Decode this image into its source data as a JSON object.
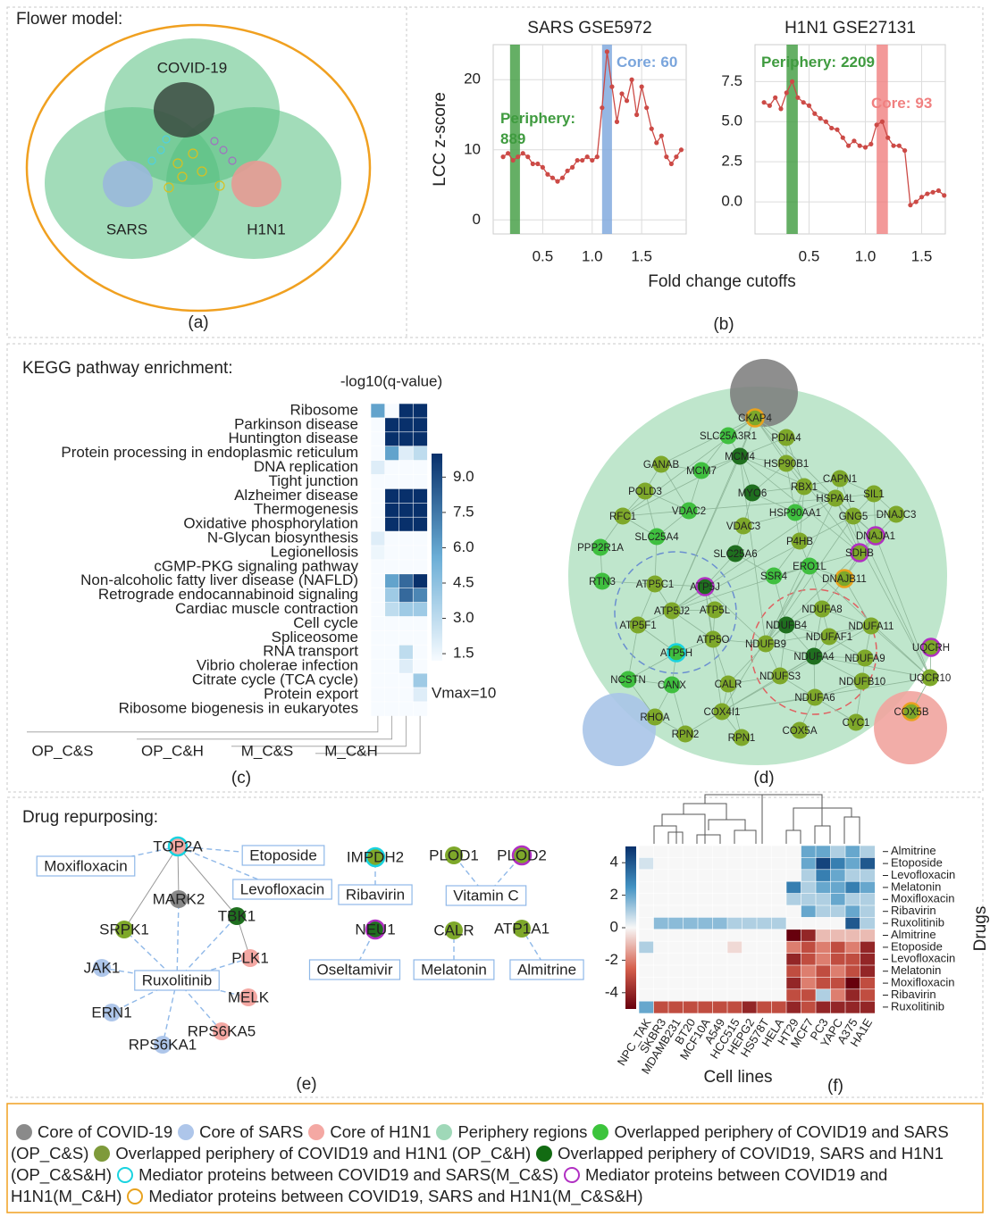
{
  "panel_a": {
    "title": "Flower model:",
    "covid": "COVID-19",
    "sars": "SARS",
    "h1n1": "H1N1",
    "label": "(a)"
  },
  "panel_b": {
    "xlabel": "Fold change cutoffs",
    "ylabel": "LCC z-score",
    "label": "(b)"
  },
  "panel_c": {
    "title": "KEGG pathway enrichment:",
    "label": "(c)"
  },
  "panel_e": {
    "title": "Drug repurposing:",
    "label": "(e)"
  },
  "panel_f": {
    "xlabel": "Cell lines",
    "ylabel": "Drugs",
    "label": "(f)"
  },
  "chart_data": [
    {
      "type": "line",
      "title": "SARS GSE5972",
      "x": [
        0.1,
        0.15,
        0.2,
        0.25,
        0.3,
        0.35,
        0.4,
        0.45,
        0.5,
        0.55,
        0.6,
        0.65,
        0.7,
        0.75,
        0.8,
        0.85,
        0.9,
        0.95,
        1.0,
        1.05,
        1.1,
        1.15,
        1.2,
        1.25,
        1.3,
        1.35,
        1.4,
        1.45,
        1.5,
        1.55,
        1.6,
        1.65,
        1.7,
        1.75,
        1.8,
        1.85,
        1.9
      ],
      "series": [
        {
          "color": "#cc4a46",
          "values": [
            9,
            9.5,
            8.5,
            9,
            9.5,
            9,
            8,
            8,
            7.5,
            6.5,
            6,
            5.5,
            6,
            7,
            7.5,
            8.5,
            8.5,
            9,
            8.5,
            9,
            16,
            24,
            19,
            14,
            18,
            17,
            20,
            15,
            19,
            16,
            13,
            11,
            12,
            9,
            8,
            9,
            10
          ]
        }
      ],
      "xlim": [
        0,
        1.95
      ],
      "xticks": [
        0.5,
        {
          "value": 1,
          "label": "1.0"
        },
        1.5
      ],
      "ylim": [
        -2,
        25
      ],
      "yticks": [
        0,
        10,
        20
      ],
      "grid": true,
      "highlights": [
        {
          "label": "Periphery:",
          "count": 889,
          "x": [
            0.17,
            0.27
          ],
          "color": "#3f9b3f"
        },
        {
          "label": "Core:",
          "count": 60,
          "x": [
            1.1,
            1.2
          ],
          "color": "#7aa5dc"
        }
      ]
    },
    {
      "type": "line",
      "title": "H1N1 GSE27131",
      "x": [
        0.1,
        0.15,
        0.2,
        0.25,
        0.3,
        0.35,
        0.4,
        0.45,
        0.5,
        0.55,
        0.6,
        0.65,
        0.7,
        0.75,
        0.8,
        0.85,
        0.9,
        0.95,
        1.0,
        1.05,
        1.1,
        1.15,
        1.2,
        1.25,
        1.3,
        1.35,
        1.4,
        1.45,
        1.5,
        1.55,
        1.6,
        1.65,
        1.7
      ],
      "series": [
        {
          "color": "#cc4a46",
          "values": [
            6.2,
            6,
            6.5,
            5.8,
            6.8,
            7.5,
            6.5,
            6.2,
            6,
            5.5,
            5.2,
            5,
            4.6,
            4.5,
            4,
            3.5,
            3.8,
            3.5,
            3.4,
            3.6,
            4.8,
            5,
            4,
            3.5,
            3.5,
            3.2,
            -0.2,
            0,
            0.3,
            0.5,
            0.6,
            0.7,
            0.4
          ]
        }
      ],
      "xlim": [
        0.02,
        1.71
      ],
      "xticks": [
        0.5,
        {
          "value": 1,
          "label": "1.0"
        },
        1.5
      ],
      "ylim": [
        -2,
        9.8
      ],
      "yticks": [
        {
          "value": 0,
          "label": "0.0"
        },
        2.5,
        {
          "value": 5,
          "label": "5.0"
        },
        7.5
      ],
      "grid": true,
      "highlights": [
        {
          "label": "Periphery:",
          "count": 2209,
          "x": [
            0.3,
            0.4
          ],
          "color": "#3f9b3f"
        },
        {
          "label": "Core:",
          "count": 93,
          "x": [
            1.1,
            1.2
          ],
          "color": "#f08080"
        }
      ]
    },
    {
      "type": "heatmap",
      "colorbar_title": "-log10(q-value)",
      "note": "Vmax=10",
      "rows": [
        "Ribosome",
        "Parkinson disease",
        "Huntington disease",
        "Protein processing in endoplasmic reticulum",
        "DNA replication",
        "Tight junction",
        "Alzheimer disease",
        "Thermogenesis",
        "Oxidative phosphorylation",
        "N-Glycan biosynthesis",
        "Legionellosis",
        "cGMP-PKG signaling pathway",
        "Non-alcoholic fatty liver disease (NAFLD)",
        "Retrograde endocannabinoid signaling",
        "Cardiac muscle contraction",
        "Cell cycle",
        "Spliceosome",
        "RNA transport",
        "Vibrio cholerae infection",
        "Citrate cycle (TCA cycle)",
        "Protein export",
        "Ribosome biogenesis in eukaryotes"
      ],
      "columns": [
        "OP_C&S",
        "OP_C&H",
        "M_C&S",
        "M_C&H"
      ],
      "values": [
        [
          6,
          1,
          10,
          10
        ],
        [
          1,
          10,
          10,
          10
        ],
        [
          1,
          10,
          10,
          10
        ],
        [
          1,
          6,
          2,
          3
        ],
        [
          2,
          1,
          1,
          1
        ],
        [
          1,
          0.5,
          0.5,
          0.5
        ],
        [
          1,
          10,
          10,
          10
        ],
        [
          1,
          10,
          10,
          10
        ],
        [
          1,
          10,
          10,
          10
        ],
        [
          2,
          0.5,
          0.5,
          0.5
        ],
        [
          1.5,
          0.5,
          0.5,
          0.5
        ],
        [
          1,
          0.5,
          0.5,
          0.5
        ],
        [
          1,
          6,
          8,
          10
        ],
        [
          1,
          4,
          8,
          7
        ],
        [
          1,
          3,
          4,
          4
        ],
        [
          1,
          0.5,
          0.5,
          0.5
        ],
        [
          1,
          0.5,
          0.5,
          0.5
        ],
        [
          1,
          0.5,
          3,
          0.5
        ],
        [
          1,
          0.5,
          2,
          0.5
        ],
        [
          1,
          0.5,
          0.5,
          4
        ],
        [
          1,
          0.5,
          0.5,
          2
        ],
        [
          1,
          0.5,
          0.5,
          0.5
        ]
      ],
      "clim": [
        1.2,
        10
      ],
      "colors": [
        "#f7fbff",
        "#6baed6",
        "#08306b"
      ],
      "cticks": [
        1.5,
        {
          "value": 3,
          "label": "3.0"
        },
        4.5,
        {
          "value": 6,
          "label": "6.0"
        },
        7.5,
        {
          "value": 9,
          "label": "9.0"
        }
      ]
    },
    {
      "type": "heatmap",
      "rows": [
        "Almitrine",
        "Etoposide",
        "Levofloxacin",
        "Melatonin",
        "Moxifloxacin",
        "Ribavirin",
        "Ruxolitinib",
        "Almitrine",
        "Etoposide",
        "Levofloxacin",
        "Melatonin",
        "Moxifloxacin",
        "Ribavirin",
        "Ruxolitinib"
      ],
      "columns": [
        "NPC_TAK",
        "SKBR3",
        "MDAMB231",
        "BT20",
        "MCF10A",
        "A549",
        "HCC515",
        "HEPG2",
        "HS578T",
        "HELA",
        "HT29",
        "MCF7",
        "PC3",
        "YAPC",
        "A375",
        "HA1E"
      ],
      "values": [
        [
          0,
          0,
          0,
          0,
          0,
          0,
          0,
          0,
          0,
          0,
          0,
          2,
          2,
          1,
          2,
          1
        ],
        [
          0.5,
          0,
          0,
          0,
          0,
          0,
          0,
          0,
          0,
          0,
          0,
          2,
          4.5,
          3,
          2,
          4
        ],
        [
          0,
          0,
          0,
          0,
          0,
          0,
          0,
          0,
          0,
          0,
          0,
          1,
          3,
          2,
          1,
          1
        ],
        [
          0,
          0,
          0,
          0,
          0,
          0,
          0,
          0,
          0,
          0,
          3,
          1,
          2,
          2,
          3,
          2
        ],
        [
          0,
          0,
          0,
          0,
          0,
          0,
          0,
          0,
          0,
          0,
          1,
          1,
          1,
          2,
          1,
          1
        ],
        [
          0,
          0,
          0,
          0,
          0,
          0,
          0,
          0,
          0,
          0,
          0,
          2,
          1,
          1,
          2,
          1
        ],
        [
          0,
          1.5,
          1.5,
          1.5,
          1.5,
          1.5,
          1,
          1,
          1,
          1,
          0,
          0,
          0,
          0,
          4,
          1
        ],
        [
          0,
          0,
          0,
          0,
          0,
          0,
          0,
          0,
          0,
          0,
          -5,
          -4,
          -1,
          -1,
          -1,
          -1
        ],
        [
          1,
          0,
          0,
          0,
          0,
          0,
          -0.5,
          0,
          0,
          0,
          -2,
          -3,
          -2,
          -3,
          -2,
          -4
        ],
        [
          0,
          0,
          0,
          0,
          0,
          0,
          0,
          0,
          0,
          0,
          -4,
          -3,
          -2,
          -3,
          -3,
          -4
        ],
        [
          0,
          0,
          0,
          0,
          0,
          0,
          0,
          0,
          0,
          0,
          -3,
          -2,
          -3,
          -2,
          -3,
          -4
        ],
        [
          0,
          0,
          0,
          0,
          0,
          0,
          0,
          0,
          0,
          0,
          -4,
          -2,
          -3,
          -3,
          -5,
          -3
        ],
        [
          0,
          0,
          0,
          0,
          0,
          0,
          0,
          0,
          0,
          0,
          -3,
          -3,
          1,
          -2,
          -4,
          -3
        ],
        [
          2,
          -3,
          -3,
          -3,
          -3,
          -3,
          -3,
          -4,
          -3,
          -3,
          -4,
          -3,
          -4,
          -4,
          -4,
          -4
        ]
      ],
      "clim": [
        -5,
        5
      ],
      "colors": [
        "#67000d",
        "#d6604d",
        "#f7f7f7",
        "#4393c3",
        "#08306b"
      ],
      "cticks": [
        4,
        2,
        0,
        -2,
        -4
      ]
    }
  ],
  "network": {
    "label": "(d)",
    "nodes": [
      {
        "name": "CKAP4",
        "color": "#7ea82a",
        "ring": "#e8a21e"
      },
      {
        "name": "SLC25A3R1",
        "color": "#3fbf3f"
      },
      {
        "name": "PDIA4",
        "color": "#7ea82a"
      },
      {
        "name": "GANAB",
        "color": "#7ea82a"
      },
      {
        "name": "MCM7",
        "color": "#3fbf3f"
      },
      {
        "name": "MCM4",
        "color": "#1f6f1f"
      },
      {
        "name": "HSP90B1",
        "color": "#7ea82a"
      },
      {
        "name": "CAPN1",
        "color": "#7ea82a"
      },
      {
        "name": "RBX1",
        "color": "#7ea82a"
      },
      {
        "name": "SIL1",
        "color": "#7ea82a"
      },
      {
        "name": "HSPA4L",
        "color": "#7ea82a"
      },
      {
        "name": "POLD3",
        "color": "#7ea82a"
      },
      {
        "name": "MYO6",
        "color": "#1f6f1f"
      },
      {
        "name": "VDAC2",
        "color": "#3fbf3f"
      },
      {
        "name": "HSP90AA1",
        "color": "#3fbf3f"
      },
      {
        "name": "GNG5",
        "color": "#7ea82a"
      },
      {
        "name": "DNAJC3",
        "color": "#7ea82a"
      },
      {
        "name": "RFC1",
        "color": "#7ea82a"
      },
      {
        "name": "VDAC3",
        "color": "#7ea82a"
      },
      {
        "name": "SLC25A4",
        "color": "#3fbf3f"
      },
      {
        "name": "DNAJA1",
        "color": "#7ea82a",
        "ring": "#b02fc2"
      },
      {
        "name": "P4HB",
        "color": "#7ea82a"
      },
      {
        "name": "PPP2R1A",
        "color": "#3fbf3f"
      },
      {
        "name": "SLC25A6",
        "color": "#1f6f1f"
      },
      {
        "name": "SDHB",
        "color": "#7ea82a",
        "ring": "#b02fc2"
      },
      {
        "name": "ERO1L",
        "color": "#3fbf3f"
      },
      {
        "name": "RTN3",
        "color": "#3fbf3f"
      },
      {
        "name": "SSR4",
        "color": "#3fbf3f"
      },
      {
        "name": "DNAJB11",
        "color": "#7ea82a",
        "ring": "#e8a21e"
      },
      {
        "name": "ATP5C1",
        "color": "#7ea82a"
      },
      {
        "name": "ATP5J",
        "color": "#1f6f1f",
        "ring": "#b02fc2"
      },
      {
        "name": "ATP5J2",
        "color": "#7ea82a"
      },
      {
        "name": "ATP5L",
        "color": "#7ea82a"
      },
      {
        "name": "NDUFA8",
        "color": "#7ea82a"
      },
      {
        "name": "NDUFB4",
        "color": "#1f6f1f"
      },
      {
        "name": "NDUFA11",
        "color": "#7ea82a"
      },
      {
        "name": "ATP5F1",
        "color": "#7ea82a"
      },
      {
        "name": "NDUFAF1",
        "color": "#7ea82a"
      },
      {
        "name": "NDUFB9",
        "color": "#7ea82a"
      },
      {
        "name": "ATP5O",
        "color": "#7ea82a"
      },
      {
        "name": "NDUFA4",
        "color": "#1f6f1f"
      },
      {
        "name": "NDUFA9",
        "color": "#7ea82a"
      },
      {
        "name": "ATP5H",
        "color": "#3fbf3f",
        "ring": "#19d3e0"
      },
      {
        "name": "UQCRH",
        "color": "#7ea82a",
        "ring": "#b02fc2"
      },
      {
        "name": "NDUFS3",
        "color": "#7ea82a"
      },
      {
        "name": "UQCR10",
        "color": "#7ea82a"
      },
      {
        "name": "NCSTN",
        "color": "#3fbf3f"
      },
      {
        "name": "CANX",
        "color": "#3fbf3f"
      },
      {
        "name": "CALR",
        "color": "#7ea82a"
      },
      {
        "name": "NDUFB10",
        "color": "#7ea82a"
      },
      {
        "name": "NDUFA6",
        "color": "#7ea82a"
      },
      {
        "name": "COX5B",
        "color": "#7ea82a",
        "ring": "#e8a21e"
      },
      {
        "name": "COX4I1",
        "color": "#7ea82a"
      },
      {
        "name": "RHOA",
        "color": "#7ea82a"
      },
      {
        "name": "CYC1",
        "color": "#7ea82a"
      },
      {
        "name": "COX5A",
        "color": "#7ea82a"
      },
      {
        "name": "RPN2",
        "color": "#7ea82a"
      },
      {
        "name": "RPN1",
        "color": "#7ea82a"
      }
    ]
  },
  "drug_network": {
    "proteins": [
      {
        "name": "TOP2A",
        "color": "#f4a8a3",
        "ring": "#19d3e0"
      },
      {
        "name": "MARK2",
        "color": "#888888"
      },
      {
        "name": "TBK1",
        "color": "#1f6f1f"
      },
      {
        "name": "SRPK1",
        "color": "#7ea82a"
      },
      {
        "name": "JAK1",
        "color": "#aec6ea"
      },
      {
        "name": "PLK1",
        "color": "#f4a8a3"
      },
      {
        "name": "MELK",
        "color": "#f4a8a3"
      },
      {
        "name": "ERN1",
        "color": "#aec6ea"
      },
      {
        "name": "RPS6KA5",
        "color": "#f4a8a3"
      },
      {
        "name": "RPS6KA1",
        "color": "#aec6ea"
      },
      {
        "name": "IMPDH2",
        "color": "#7ea82a",
        "ring": "#19d3e0"
      },
      {
        "name": "PLOD1",
        "color": "#7ea82a"
      },
      {
        "name": "PLOD2",
        "color": "#7ea82a",
        "ring": "#b02fc2"
      },
      {
        "name": "NEU1",
        "color": "#1f6f1f",
        "ring": "#b02fc2"
      },
      {
        "name": "CALR",
        "color": "#7ea82a"
      },
      {
        "name": "ATP1A1",
        "color": "#7ea82a"
      }
    ],
    "drugs": [
      "Moxifloxacin",
      "Etoposide",
      "Levofloxacin",
      "Ruxolitinib",
      "Ribavirin",
      "Vitamin C",
      "Oseltamivir",
      "Melatonin",
      "Almitrine"
    ]
  },
  "legend": [
    {
      "text": "Core of COVID-19",
      "color": "#8a8a8a"
    },
    {
      "text": "Core of SARS",
      "color": "#aec6ea"
    },
    {
      "text": "Core of H1N1",
      "color": "#f4a8a3"
    },
    {
      "text": "Periphery regions",
      "color": "#9fd8b8"
    },
    {
      "text": "Overlapped periphery of COVID19 and SARS (OP_C&S)",
      "color": "#3cc43c"
    },
    {
      "text": "Overlapped periphery of COVID19 and H1N1 (OP_C&H)",
      "color": "#7e9a3a"
    },
    {
      "text": "Overlapped periphery of COVID19, SARS and H1N1 (OP_C&S&H)",
      "color": "#126b12"
    },
    {
      "text": "Mediator proteins between COVID19 and SARS(M_C&S)",
      "ring": "#19d3e0"
    },
    {
      "text": "Mediator proteins between COVID19 and H1N1(M_C&H)",
      "ring": "#b02fc2"
    },
    {
      "text": "Mediator proteins between COVID19, SARS and H1N1(M_C&S&H)",
      "ring": "#e8a21e"
    }
  ]
}
